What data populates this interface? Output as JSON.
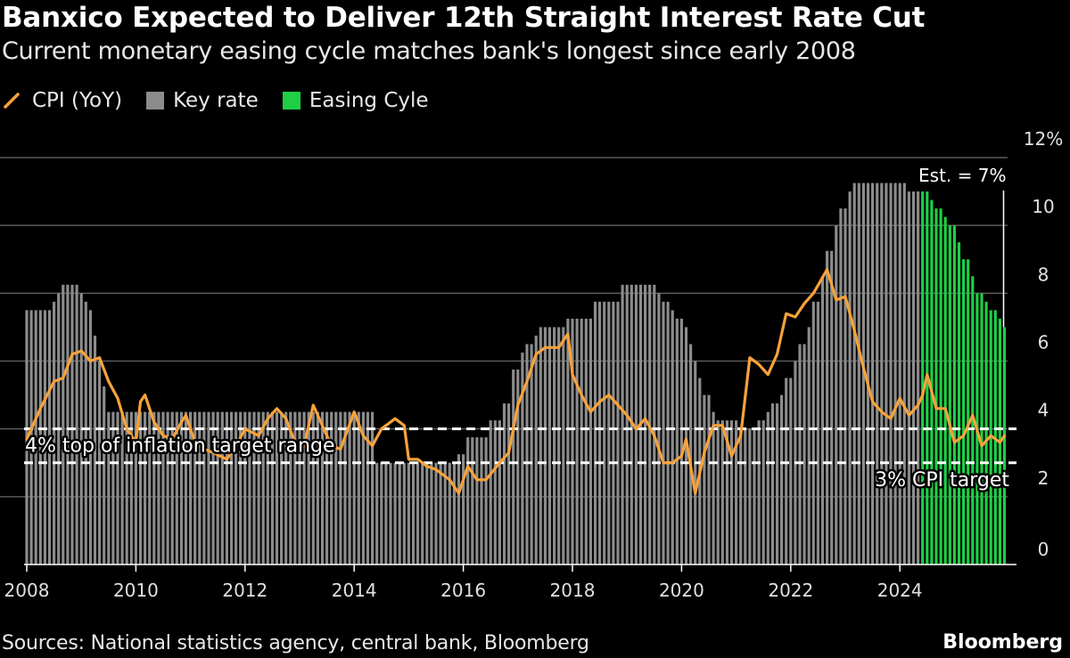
{
  "header": {
    "title": "Banxico Expected to Deliver 12th Straight Interest Rate Cut",
    "subtitle": "Current monetary easing cycle matches bank's longest since early 2008"
  },
  "legend": [
    {
      "label": "CPI (YoY)",
      "color": "#f7a23b",
      "icon": "line-swatch-icon"
    },
    {
      "label": "Key rate",
      "color": "#8c8c8c",
      "icon": "square-swatch-icon"
    },
    {
      "label": "Easing Cyle",
      "color": "#1ecf46",
      "icon": "square-swatch-icon"
    }
  ],
  "footer": {
    "source": "Sources: National statistics agency, central bank, Bloomberg",
    "brand": "Bloomberg"
  },
  "chart_data": {
    "type": "bar",
    "x_axis": {
      "range": [
        "2008-01",
        "2026-01"
      ],
      "tick_labels": [
        "2008",
        "2010",
        "2012",
        "2014",
        "2016",
        "2018",
        "2020",
        "2022",
        "2024"
      ]
    },
    "y_axis": {
      "range": [
        0,
        12
      ],
      "ticks": [
        0,
        2,
        4,
        6,
        8,
        10,
        12
      ],
      "tick_labels": [
        "0",
        "2",
        "4",
        "6",
        "8",
        "10",
        "12%"
      ],
      "position": "right",
      "grid": true
    },
    "reference_lines": [
      {
        "value": 4,
        "label": "4% top of inflation target range",
        "style": "dashed"
      },
      {
        "value": 3,
        "label": "3% CPI target",
        "style": "dashed"
      }
    ],
    "annotation": {
      "label": "Est. = 7%",
      "value": 7,
      "date": "2025-12"
    },
    "series": [
      {
        "name": "Key rate",
        "kind": "bar",
        "color": "#8c8c8c",
        "steps": [
          [
            "2008-01",
            7.5
          ],
          [
            "2008-07",
            7.75
          ],
          [
            "2008-08",
            8.0
          ],
          [
            "2008-09",
            8.25
          ],
          [
            "2009-01",
            8.0
          ],
          [
            "2009-02",
            7.75
          ],
          [
            "2009-03",
            7.5
          ],
          [
            "2009-04",
            6.75
          ],
          [
            "2009-05",
            6.0
          ],
          [
            "2009-06",
            5.25
          ],
          [
            "2009-07",
            4.5
          ],
          [
            "2014-06",
            3.0
          ],
          [
            "2015-12",
            3.25
          ],
          [
            "2016-02",
            3.75
          ],
          [
            "2016-07",
            4.25
          ],
          [
            "2016-10",
            4.75
          ],
          [
            "2016-12",
            5.75
          ],
          [
            "2017-02",
            6.25
          ],
          [
            "2017-03",
            6.5
          ],
          [
            "2017-05",
            6.75
          ],
          [
            "2017-06",
            7.0
          ],
          [
            "2017-12",
            7.25
          ],
          [
            "2018-06",
            7.75
          ],
          [
            "2018-12",
            8.25
          ],
          [
            "2019-08",
            8.0
          ],
          [
            "2019-09",
            7.75
          ],
          [
            "2019-11",
            7.5
          ],
          [
            "2019-12",
            7.25
          ],
          [
            "2020-02",
            7.0
          ],
          [
            "2020-03",
            6.5
          ],
          [
            "2020-04",
            6.0
          ],
          [
            "2020-05",
            5.5
          ],
          [
            "2020-06",
            5.0
          ],
          [
            "2020-08",
            4.5
          ],
          [
            "2020-09",
            4.25
          ],
          [
            "2021-02",
            4.0
          ],
          [
            "2021-06",
            4.25
          ],
          [
            "2021-08",
            4.5
          ],
          [
            "2021-09",
            4.75
          ],
          [
            "2021-11",
            5.0
          ],
          [
            "2021-12",
            5.5
          ],
          [
            "2022-02",
            6.0
          ],
          [
            "2022-03",
            6.5
          ],
          [
            "2022-05",
            7.0
          ],
          [
            "2022-06",
            7.75
          ],
          [
            "2022-08",
            8.5
          ],
          [
            "2022-09",
            9.25
          ],
          [
            "2022-11",
            10.0
          ],
          [
            "2022-12",
            10.5
          ],
          [
            "2023-02",
            11.0
          ],
          [
            "2023-03",
            11.25
          ],
          [
            "2024-03",
            11.0
          ]
        ]
      },
      {
        "name": "Easing Cyle",
        "kind": "bar",
        "color": "#1ecf46",
        "steps": [
          [
            "2024-06",
            11.0
          ],
          [
            "2024-08",
            10.75
          ],
          [
            "2024-09",
            10.5
          ],
          [
            "2024-11",
            10.25
          ],
          [
            "2024-12",
            10.0
          ],
          [
            "2025-02",
            9.5
          ],
          [
            "2025-03",
            9.0
          ],
          [
            "2025-05",
            8.5
          ],
          [
            "2025-06",
            8.0
          ],
          [
            "2025-08",
            7.75
          ],
          [
            "2025-09",
            7.5
          ],
          [
            "2025-11",
            7.25
          ],
          [
            "2025-12",
            7.0
          ]
        ]
      },
      {
        "name": "CPI (YoY)",
        "kind": "line",
        "color": "#f7a23b",
        "points": [
          [
            "2008-01",
            3.7
          ],
          [
            "2008-04",
            4.6
          ],
          [
            "2008-07",
            5.4
          ],
          [
            "2008-09",
            5.5
          ],
          [
            "2008-11",
            6.2
          ],
          [
            "2009-01",
            6.3
          ],
          [
            "2009-03",
            6.0
          ],
          [
            "2009-05",
            6.1
          ],
          [
            "2009-07",
            5.4
          ],
          [
            "2009-09",
            4.9
          ],
          [
            "2009-11",
            4.0
          ],
          [
            "2010-01",
            3.6
          ],
          [
            "2010-02",
            4.8
          ],
          [
            "2010-03",
            5.0
          ],
          [
            "2010-05",
            4.2
          ],
          [
            "2010-07",
            3.8
          ],
          [
            "2010-09",
            3.7
          ],
          [
            "2010-11",
            4.2
          ],
          [
            "2010-12",
            4.4
          ],
          [
            "2011-02",
            3.6
          ],
          [
            "2011-04",
            3.4
          ],
          [
            "2011-06",
            3.3
          ],
          [
            "2011-09",
            3.1
          ],
          [
            "2011-11",
            3.5
          ],
          [
            "2012-01",
            4.0
          ],
          [
            "2012-04",
            3.8
          ],
          [
            "2012-06",
            4.3
          ],
          [
            "2012-08",
            4.6
          ],
          [
            "2012-10",
            4.3
          ],
          [
            "2012-12",
            3.6
          ],
          [
            "2013-02",
            3.5
          ],
          [
            "2013-04",
            4.7
          ],
          [
            "2013-06",
            4.1
          ],
          [
            "2013-08",
            3.5
          ],
          [
            "2013-10",
            3.4
          ],
          [
            "2014-01",
            4.5
          ],
          [
            "2014-03",
            3.8
          ],
          [
            "2014-05",
            3.5
          ],
          [
            "2014-07",
            4.0
          ],
          [
            "2014-10",
            4.3
          ],
          [
            "2014-12",
            4.1
          ],
          [
            "2015-01",
            3.1
          ],
          [
            "2015-03",
            3.1
          ],
          [
            "2015-05",
            2.9
          ],
          [
            "2015-07",
            2.8
          ],
          [
            "2015-10",
            2.5
          ],
          [
            "2015-12",
            2.1
          ],
          [
            "2016-02",
            2.9
          ],
          [
            "2016-04",
            2.5
          ],
          [
            "2016-06",
            2.5
          ],
          [
            "2016-09",
            3.0
          ],
          [
            "2016-11",
            3.3
          ],
          [
            "2017-01",
            4.7
          ],
          [
            "2017-03",
            5.4
          ],
          [
            "2017-05",
            6.2
          ],
          [
            "2017-07",
            6.4
          ],
          [
            "2017-09",
            6.4
          ],
          [
            "2017-10",
            6.4
          ],
          [
            "2017-12",
            6.8
          ],
          [
            "2018-01",
            5.6
          ],
          [
            "2018-03",
            5.0
          ],
          [
            "2018-05",
            4.5
          ],
          [
            "2018-07",
            4.8
          ],
          [
            "2018-09",
            5.0
          ],
          [
            "2018-11",
            4.7
          ],
          [
            "2019-01",
            4.4
          ],
          [
            "2019-03",
            4.0
          ],
          [
            "2019-05",
            4.3
          ],
          [
            "2019-07",
            3.8
          ],
          [
            "2019-09",
            3.0
          ],
          [
            "2019-11",
            3.0
          ],
          [
            "2020-01",
            3.2
          ],
          [
            "2020-02",
            3.7
          ],
          [
            "2020-04",
            2.1
          ],
          [
            "2020-06",
            3.3
          ],
          [
            "2020-08",
            4.1
          ],
          [
            "2020-10",
            4.1
          ],
          [
            "2020-12",
            3.2
          ],
          [
            "2021-02",
            3.8
          ],
          [
            "2021-04",
            6.1
          ],
          [
            "2021-06",
            5.9
          ],
          [
            "2021-08",
            5.6
          ],
          [
            "2021-10",
            6.2
          ],
          [
            "2021-12",
            7.4
          ],
          [
            "2022-02",
            7.3
          ],
          [
            "2022-04",
            7.7
          ],
          [
            "2022-06",
            8.0
          ],
          [
            "2022-09",
            8.7
          ],
          [
            "2022-11",
            7.8
          ],
          [
            "2023-01",
            7.9
          ],
          [
            "2023-03",
            6.9
          ],
          [
            "2023-05",
            5.8
          ],
          [
            "2023-07",
            4.8
          ],
          [
            "2023-09",
            4.5
          ],
          [
            "2023-11",
            4.3
          ],
          [
            "2024-01",
            4.9
          ],
          [
            "2024-03",
            4.4
          ],
          [
            "2024-05",
            4.7
          ],
          [
            "2024-06",
            5.0
          ],
          [
            "2024-07",
            5.6
          ],
          [
            "2024-09",
            4.6
          ],
          [
            "2024-11",
            4.6
          ],
          [
            "2025-01",
            3.6
          ],
          [
            "2025-03",
            3.8
          ],
          [
            "2025-05",
            4.4
          ],
          [
            "2025-07",
            3.5
          ],
          [
            "2025-09",
            3.8
          ],
          [
            "2025-11",
            3.6
          ],
          [
            "2025-12",
            3.8
          ]
        ]
      }
    ]
  }
}
